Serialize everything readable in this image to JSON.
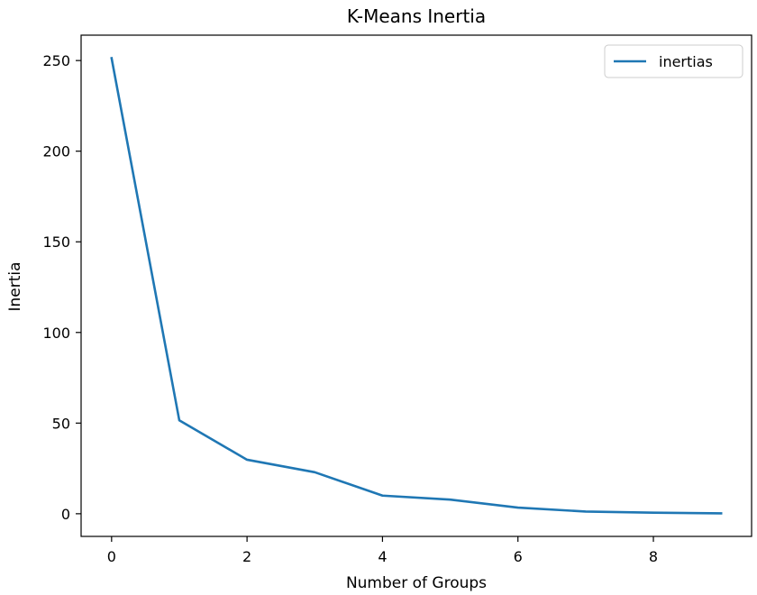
{
  "chart_data": {
    "type": "line",
    "title": "K-Means Inertia",
    "xlabel": "Number of Groups",
    "ylabel": "Inertia",
    "x": [
      0,
      1,
      2,
      3,
      4,
      5,
      6,
      7,
      8,
      9
    ],
    "series": [
      {
        "name": "inertias",
        "color": "#1f77b4",
        "values": [
          251.3,
          51.5,
          29.8,
          22.9,
          10.0,
          7.8,
          3.4,
          1.2,
          0.6,
          0.2
        ]
      }
    ],
    "xlim": [
      -0.45,
      9.45
    ],
    "ylim": [
      -12.5,
      264
    ],
    "xticks": [
      0,
      2,
      4,
      6,
      8
    ],
    "yticks": [
      0,
      50,
      100,
      150,
      200,
      250
    ],
    "grid": false,
    "legend_position": "upper right"
  }
}
